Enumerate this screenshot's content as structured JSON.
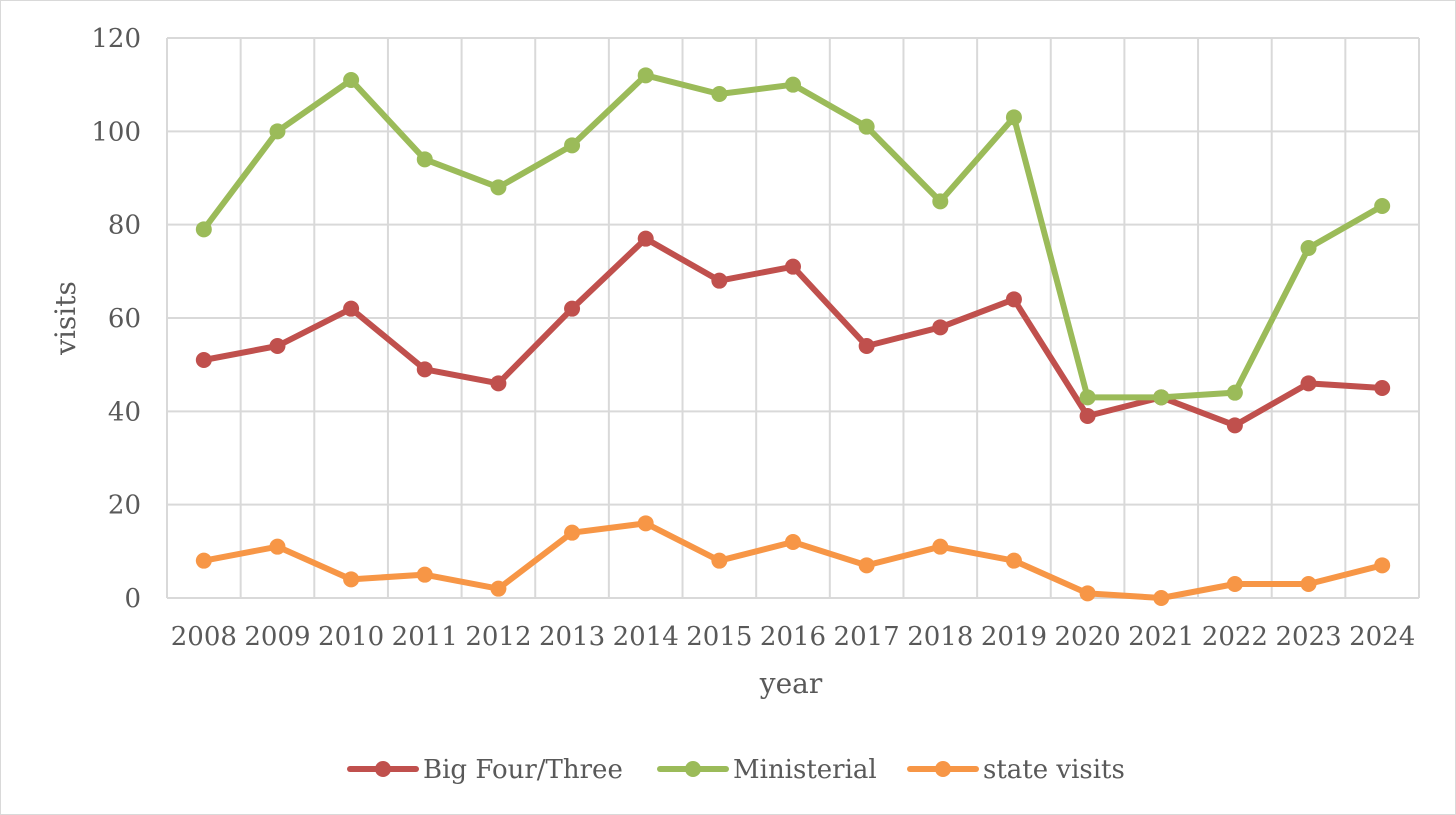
{
  "chart_data": {
    "type": "line",
    "title": "",
    "xlabel": "year",
    "ylabel": "visits",
    "ylim": [
      0,
      120
    ],
    "yticks": [
      0,
      20,
      40,
      60,
      80,
      100,
      120
    ],
    "grid": true,
    "legend_position": "bottom",
    "categories": [
      "2008",
      "2009",
      "2010",
      "2011",
      "2012",
      "2013",
      "2014",
      "2015",
      "2016",
      "2017",
      "2018",
      "2019",
      "2020",
      "2021",
      "2022",
      "2023",
      "2024"
    ],
    "series": [
      {
        "name": "Big Four/Three",
        "color": "#c0504d",
        "values": [
          51,
          54,
          62,
          49,
          46,
          62,
          77,
          68,
          71,
          54,
          58,
          64,
          39,
          43,
          37,
          46,
          45
        ]
      },
      {
        "name": "Ministerial",
        "color": "#9bbb59",
        "values": [
          79,
          100,
          111,
          94,
          88,
          97,
          112,
          108,
          110,
          101,
          85,
          103,
          43,
          43,
          44,
          75,
          84
        ]
      },
      {
        "name": "state visits",
        "color": "#f79646",
        "values": [
          8,
          11,
          4,
          5,
          2,
          14,
          16,
          8,
          12,
          7,
          11,
          8,
          1,
          0,
          3,
          3,
          7
        ]
      }
    ]
  }
}
